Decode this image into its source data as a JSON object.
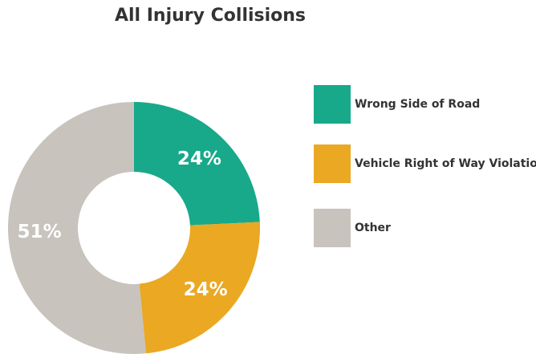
{
  "chart_data": {
    "type": "donut",
    "title": "All Injury Collisions",
    "categories": [
      "Wrong Side of Road",
      "Vehicle Right of Way Violation",
      "Other"
    ],
    "values": [
      24,
      24,
      51
    ],
    "value_labels": [
      "24%",
      "24%",
      "51%"
    ],
    "colors": [
      "#17a98a",
      "#eaa823",
      "#c8c3bd"
    ],
    "legend": "right"
  }
}
